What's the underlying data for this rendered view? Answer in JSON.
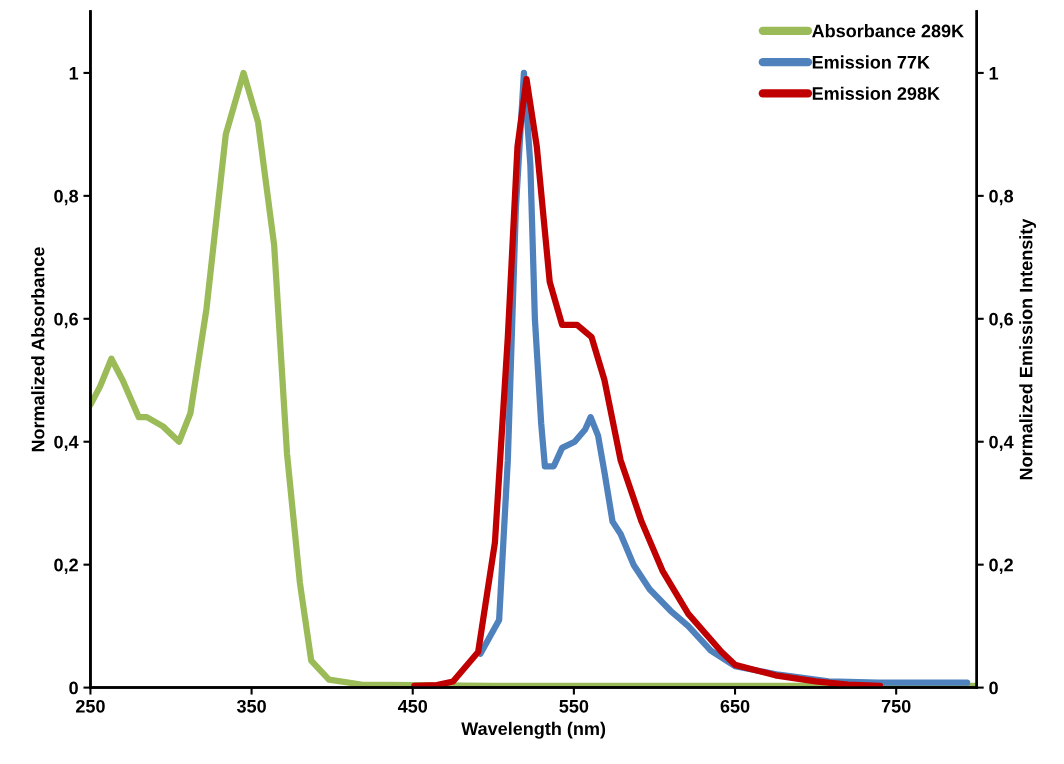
{
  "chart_data": {
    "type": "line",
    "xlabel": "Wavelength (nm)",
    "ylabel": "Normalized Absorbance",
    "y2label": "Normalized Emission Intensity",
    "xlim": [
      250,
      800
    ],
    "xticks": [
      250,
      350,
      450,
      550,
      650,
      750
    ],
    "ylim": [
      0,
      1.1
    ],
    "yticks": [
      0,
      {
        "value": 0.2,
        "label": "0,2"
      },
      {
        "value": 0.4,
        "label": "0,4"
      },
      {
        "value": 0.6,
        "label": "0,6"
      },
      {
        "value": 0.8,
        "label": "0,8"
      },
      1
    ],
    "y2lim": [
      0,
      1.1
    ],
    "y2ticks": [
      0,
      {
        "value": 0.2,
        "label": "0,2"
      },
      {
        "value": 0.4,
        "label": "0,4"
      },
      {
        "value": 0.6,
        "label": "0,6"
      },
      {
        "value": 0.8,
        "label": "0,8"
      },
      1
    ],
    "grid": false,
    "legend": "top right",
    "marker": "none",
    "line_style": "solid",
    "series": [
      {
        "name": "Absorbance 289K",
        "color": "#9bbb59",
        "x": [
          250,
          256,
          263,
          270,
          280,
          285,
          295,
          305,
          312,
          322,
          334,
          345,
          354,
          364,
          372,
          380,
          387,
          398,
          418,
          500,
          600,
          700,
          800
        ],
        "values": [
          0.46,
          0.49,
          0.535,
          0.5,
          0.44,
          0.44,
          0.425,
          0.4,
          0.446,
          0.616,
          0.9,
          1.0,
          0.92,
          0.72,
          0.38,
          0.17,
          0.044,
          0.013,
          0.005,
          0.003,
          0.003,
          0.003,
          0.003
        ]
      },
      {
        "name": "Emission 77K",
        "color": "#4f81bd",
        "axis": "y2",
        "x": [
          492,
          503.6,
          509,
          514,
          519,
          523,
          525.8,
          529.7,
          532,
          537.5,
          542.7,
          550.5,
          557,
          560.4,
          565,
          569,
          574,
          579,
          587,
          597,
          610,
          621,
          635,
          650,
          677,
          708,
          739,
          794
        ],
        "values": [
          0.055,
          0.11,
          0.37,
          0.78,
          1.0,
          0.85,
          0.6,
          0.43,
          0.36,
          0.36,
          0.39,
          0.4,
          0.42,
          0.44,
          0.41,
          0.35,
          0.27,
          0.25,
          0.2,
          0.16,
          0.125,
          0.1,
          0.06,
          0.035,
          0.021,
          0.01,
          0.008,
          0.008
        ]
      },
      {
        "name": "Emission 298K",
        "color": "#c00000",
        "axis": "y2",
        "x": [
          451,
          465,
          475,
          490.6,
          501,
          509,
          515,
          520.6,
          527,
          535,
          542.7,
          552,
          561,
          569,
          579,
          592,
          605,
          621,
          641.7,
          650,
          675,
          700,
          720,
          740
        ],
        "values": [
          0.003,
          0.004,
          0.01,
          0.058,
          0.236,
          0.57,
          0.88,
          0.99,
          0.88,
          0.66,
          0.59,
          0.59,
          0.57,
          0.5,
          0.37,
          0.27,
          0.19,
          0.12,
          0.058,
          0.037,
          0.02,
          0.01,
          0.005,
          0.003
        ]
      }
    ]
  }
}
